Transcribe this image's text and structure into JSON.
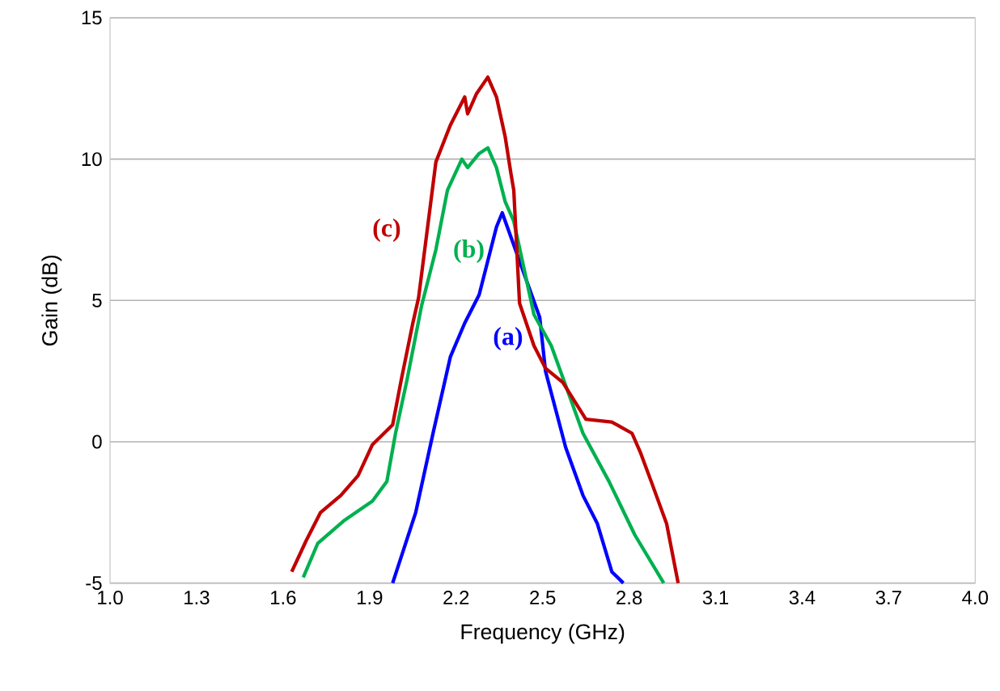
{
  "chart_data": {
    "type": "line",
    "xlabel": "Frequency (GHz)",
    "ylabel": "Gain (dB)",
    "xlim": [
      1.0,
      4.0
    ],
    "xticks": [
      {
        "value": 1.0,
        "label": "1.0"
      },
      {
        "value": 1.3,
        "label": "1.3"
      },
      {
        "value": 1.6,
        "label": "1.6"
      },
      {
        "value": 1.9,
        "label": "1.9"
      },
      {
        "value": 2.2,
        "label": "2.2"
      },
      {
        "value": 2.5,
        "label": "2.5"
      },
      {
        "value": 2.8,
        "label": "2.8"
      },
      {
        "value": 3.1,
        "label": "3.1"
      },
      {
        "value": 3.4,
        "label": "3.4"
      },
      {
        "value": 3.7,
        "label": "3.7"
      },
      {
        "value": 4.0,
        "label": "4.0"
      }
    ],
    "ylim": [
      -5,
      15
    ],
    "yticks": [
      -5,
      0,
      5,
      10,
      15
    ],
    "grid": "y",
    "legend": false,
    "marker": "none",
    "line_style": "solid",
    "series": [
      {
        "name": "(a)",
        "color": "#0000ff",
        "x": [
          1.98,
          2.06,
          2.12,
          2.18,
          2.23,
          2.28,
          2.34,
          2.36,
          2.49,
          2.51,
          2.58,
          2.64,
          2.69,
          2.74,
          2.78
        ],
        "values": [
          -5,
          -2.5,
          0.3,
          3.0,
          4.2,
          5.2,
          7.6,
          8.1,
          4.4,
          2.5,
          -0.2,
          -1.9,
          -2.9,
          -4.6,
          -5
        ]
      },
      {
        "name": "(b)",
        "color": "#00b050",
        "x": [
          1.67,
          1.72,
          1.81,
          1.91,
          1.96,
          1.99,
          2.03,
          2.08,
          2.13,
          2.17,
          2.22,
          2.24,
          2.28,
          2.31,
          2.34,
          2.37,
          2.4,
          2.47,
          2.53,
          2.64,
          2.73,
          2.82,
          2.92
        ],
        "values": [
          -4.8,
          -3.6,
          -2.8,
          -2.1,
          -1.4,
          0.3,
          2.2,
          4.8,
          6.8,
          8.9,
          10.0,
          9.7,
          10.2,
          10.4,
          9.7,
          8.5,
          7.8,
          4.5,
          3.4,
          0.3,
          -1.4,
          -3.3,
          -5
        ]
      },
      {
        "name": "(c)",
        "color": "#c00000",
        "x": [
          1.63,
          1.68,
          1.73,
          1.8,
          1.86,
          1.91,
          1.98,
          2.01,
          2.05,
          2.07,
          2.13,
          2.18,
          2.23,
          2.24,
          2.27,
          2.31,
          2.34,
          2.37,
          2.39,
          2.4,
          2.42,
          2.47,
          2.51,
          2.57,
          2.65,
          2.74,
          2.81,
          2.84,
          2.88,
          2.93,
          2.97
        ],
        "values": [
          -4.6,
          -3.5,
          -2.5,
          -1.9,
          -1.2,
          -0.1,
          0.6,
          2.2,
          4.2,
          5.1,
          9.9,
          11.2,
          12.2,
          11.6,
          12.3,
          12.9,
          12.2,
          10.8,
          9.5,
          8.9,
          4.9,
          3.4,
          2.6,
          2.1,
          0.8,
          0.7,
          0.3,
          -0.4,
          -1.5,
          -2.9,
          -5
        ]
      }
    ]
  }
}
